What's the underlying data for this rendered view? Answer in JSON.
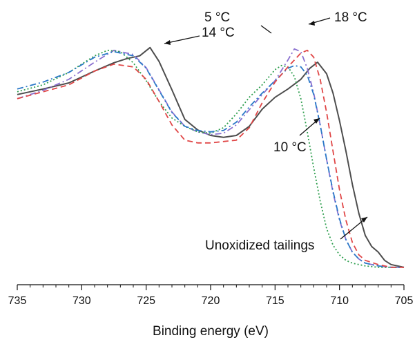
{
  "chart_data": {
    "type": "line",
    "xlabel": "Binding energy (eV)",
    "ylabel": "",
    "xlim": [
      735,
      705
    ],
    "ylim": [
      0,
      1
    ],
    "x_reversed": true,
    "y_axis_shown": false,
    "grid": false,
    "x_ticks": [
      735,
      730,
      725,
      720,
      715,
      710,
      705
    ],
    "series": [
      {
        "name": "Unoxidized tailings",
        "color": "#4d4d4d",
        "dash": "solid",
        "x": [
          735,
          733,
          731,
          729,
          727.5,
          726.5,
          725.5,
          724.7,
          724,
          723,
          722,
          721,
          720,
          719,
          718,
          717,
          716,
          715,
          714,
          713,
          712.3,
          711.7,
          711,
          710.5,
          710,
          709.5,
          709,
          708.5,
          708,
          707.5,
          707,
          706.5,
          706,
          705.5,
          705
        ],
        "y": [
          0.683,
          0.703,
          0.725,
          0.768,
          0.798,
          0.813,
          0.823,
          0.853,
          0.803,
          0.7,
          0.593,
          0.555,
          0.535,
          0.528,
          0.535,
          0.568,
          0.63,
          0.673,
          0.703,
          0.738,
          0.778,
          0.8,
          0.758,
          0.688,
          0.588,
          0.478,
          0.358,
          0.253,
          0.173,
          0.133,
          0.113,
          0.083,
          0.068,
          0.063,
          0.058
        ]
      },
      {
        "name": "5 °C",
        "color": "#8a70d0",
        "dash": "dashdot",
        "x": [
          735,
          733,
          731,
          729,
          727.5,
          726,
          725,
          724,
          723,
          722,
          721,
          720,
          719,
          718,
          717,
          716,
          715,
          714,
          713.5,
          713,
          712.5,
          712,
          711.5,
          711,
          710.5,
          710,
          709.5,
          709,
          708.5,
          708,
          707,
          706,
          705
        ],
        "y": [
          0.668,
          0.698,
          0.738,
          0.8,
          0.843,
          0.828,
          0.78,
          0.7,
          0.62,
          0.568,
          0.548,
          0.538,
          0.543,
          0.573,
          0.628,
          0.683,
          0.733,
          0.808,
          0.848,
          0.838,
          0.778,
          0.688,
          0.573,
          0.448,
          0.328,
          0.228,
          0.158,
          0.113,
          0.088,
          0.073,
          0.063,
          0.058,
          0.058
        ]
      },
      {
        "name": "10 °C",
        "color": "#2e9e4e",
        "dash": "dotted",
        "x": [
          735,
          733,
          731,
          729,
          728,
          727,
          726,
          725,
          724,
          723,
          722,
          721,
          720,
          719,
          718,
          717,
          716,
          715,
          714.5,
          714,
          713.5,
          713,
          712.5,
          712,
          711.5,
          711,
          710.5,
          710,
          709.5,
          709,
          708,
          707,
          706,
          705
        ],
        "y": [
          0.693,
          0.718,
          0.763,
          0.823,
          0.843,
          0.838,
          0.798,
          0.733,
          0.658,
          0.598,
          0.568,
          0.548,
          0.543,
          0.563,
          0.613,
          0.673,
          0.718,
          0.773,
          0.788,
          0.783,
          0.748,
          0.668,
          0.548,
          0.418,
          0.298,
          0.198,
          0.138,
          0.103,
          0.083,
          0.073,
          0.063,
          0.058,
          0.058,
          0.058
        ]
      },
      {
        "name": "14 °C",
        "color": "#2a78c8",
        "dash": "dashdot",
        "x": [
          735,
          733,
          731,
          729,
          727.5,
          726,
          725,
          724,
          723,
          722,
          721,
          720,
          719,
          718,
          717,
          716,
          715,
          714,
          713.5,
          713,
          712.5,
          712,
          711.5,
          711,
          710.5,
          710,
          709.5,
          709,
          708.5,
          708,
          707,
          706,
          705
        ],
        "y": [
          0.703,
          0.728,
          0.763,
          0.818,
          0.838,
          0.823,
          0.778,
          0.698,
          0.618,
          0.568,
          0.553,
          0.548,
          0.553,
          0.583,
          0.638,
          0.688,
          0.733,
          0.778,
          0.788,
          0.783,
          0.753,
          0.683,
          0.573,
          0.448,
          0.333,
          0.233,
          0.158,
          0.113,
          0.088,
          0.073,
          0.063,
          0.058,
          0.058
        ]
      },
      {
        "name": "18 °C",
        "color": "#e04646",
        "dash": "dashed",
        "x": [
          735,
          733,
          731,
          729,
          727.5,
          726,
          725,
          724,
          723,
          722,
          721,
          720,
          719,
          718,
          717,
          716,
          715,
          714,
          713,
          712.5,
          712,
          711.5,
          711,
          710.5,
          710,
          709.5,
          709,
          708.5,
          708,
          707,
          706,
          705
        ],
        "y": [
          0.668,
          0.693,
          0.718,
          0.768,
          0.793,
          0.783,
          0.738,
          0.658,
          0.573,
          0.518,
          0.508,
          0.508,
          0.513,
          0.518,
          0.563,
          0.653,
          0.728,
          0.783,
          0.833,
          0.843,
          0.818,
          0.738,
          0.618,
          0.478,
          0.338,
          0.228,
          0.148,
          0.103,
          0.083,
          0.068,
          0.058,
          0.058
        ]
      }
    ],
    "annotations": [
      {
        "text": "5 °C",
        "series": "5 °C"
      },
      {
        "text": "18 °C",
        "series": "18 °C"
      },
      {
        "text": "14 °C",
        "series": "14 °C"
      },
      {
        "text": "10 °C",
        "series": "10 °C"
      },
      {
        "text": "Unoxidized tailings",
        "series": "Unoxidized tailings"
      }
    ]
  }
}
